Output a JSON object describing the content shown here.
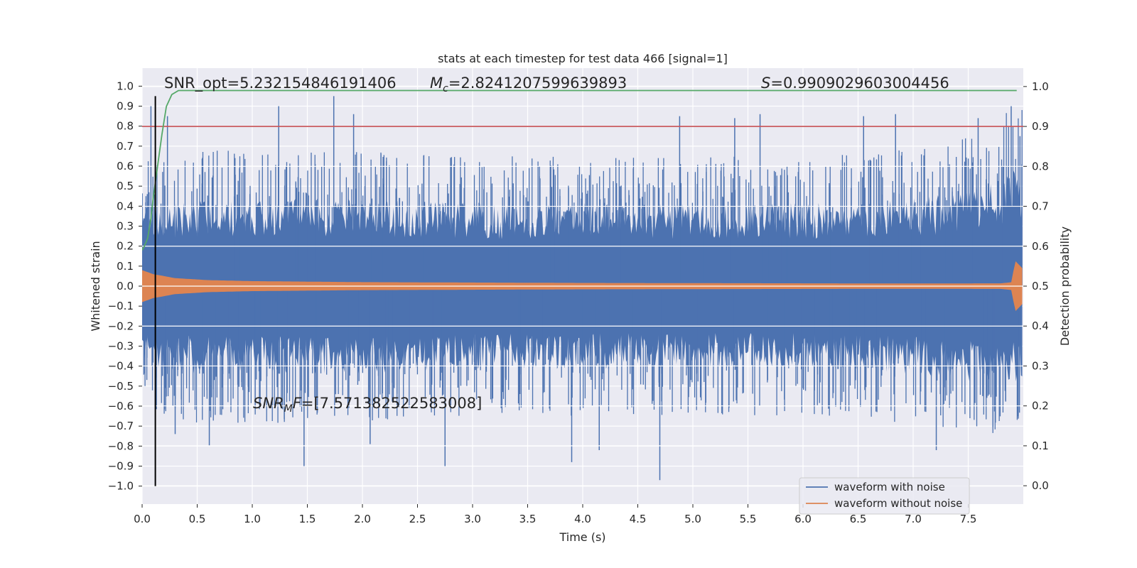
{
  "chart_data": {
    "type": "line",
    "title": "stats at each timestep for test data 466 [signal=1]",
    "xlabel": "Time (s)",
    "ylabel": "Whitened strain",
    "y2label": "Detection probability",
    "xlim": [
      0.0,
      8.0
    ],
    "ylim": [
      -1.09,
      1.09
    ],
    "y2lim": [
      -0.046,
      1.046
    ],
    "xticks": [
      "0.0",
      "0.5",
      "1.0",
      "1.5",
      "2.0",
      "2.5",
      "3.0",
      "3.5",
      "4.0",
      "4.5",
      "5.0",
      "5.5",
      "6.0",
      "6.5",
      "7.0",
      "7.5"
    ],
    "yticks": [
      "1.0",
      "0.9",
      "0.8",
      "0.7",
      "0.6",
      "0.5",
      "0.4",
      "0.3",
      "0.2",
      "0.1",
      "0.0",
      "−0.1",
      "−0.2",
      "−0.3",
      "−0.4",
      "−0.5",
      "−0.6",
      "−0.7",
      "−0.8",
      "−0.9",
      "−1.0"
    ],
    "y2ticks": [
      "1.0",
      "0.9",
      "0.8",
      "0.7",
      "0.6",
      "0.5",
      "0.4",
      "0.3",
      "0.2",
      "0.1",
      "0.0"
    ],
    "grid": true,
    "legend_position": "lower-right",
    "series": [
      {
        "name": "waveform with noise",
        "color": "#4c72b0",
        "axis": "left",
        "envelope_t": [
          0.0,
          0.5,
          1.0,
          2.0,
          3.0,
          4.0,
          5.0,
          6.0,
          7.0,
          7.5,
          7.99
        ],
        "envelope_upper": [
          0.5,
          0.55,
          0.55,
          0.55,
          0.52,
          0.52,
          0.52,
          0.52,
          0.55,
          0.6,
          0.75
        ],
        "envelope_lower": [
          -0.5,
          -0.55,
          -0.55,
          -0.55,
          -0.52,
          -0.52,
          -0.52,
          -0.52,
          -0.55,
          -0.6,
          -0.6
        ],
        "peaks": [
          [
            0.08,
            0.9
          ],
          [
            0.23,
            0.85
          ],
          [
            0.3,
            -0.74
          ],
          [
            0.61,
            -0.8
          ],
          [
            1.24,
            0.9
          ],
          [
            1.47,
            -0.9
          ],
          [
            1.74,
            0.95
          ],
          [
            1.92,
            0.86
          ],
          [
            2.07,
            -0.79
          ],
          [
            2.75,
            -0.9
          ],
          [
            3.9,
            -0.88
          ],
          [
            4.15,
            -0.82
          ],
          [
            4.7,
            -0.97
          ],
          [
            4.88,
            0.85
          ],
          [
            5.38,
            0.84
          ],
          [
            5.61,
            0.86
          ],
          [
            6.55,
            0.85
          ],
          [
            6.84,
            0.86
          ],
          [
            7.21,
            -0.82
          ],
          [
            7.59,
            0.84
          ],
          [
            7.89,
            0.9
          ],
          [
            7.97,
            0.75
          ]
        ]
      },
      {
        "name": "waveform without noise",
        "color": "#dd8452",
        "axis": "left",
        "t": [
          0.0,
          0.1,
          0.3,
          0.6,
          1.0,
          2.0,
          3.0,
          4.0,
          5.0,
          6.0,
          7.0,
          7.8,
          7.9,
          7.92,
          7.99
        ],
        "amp": [
          0.08,
          0.06,
          0.04,
          0.03,
          0.025,
          0.02,
          0.018,
          0.016,
          0.015,
          0.014,
          0.013,
          0.014,
          0.02,
          0.13,
          0.09
        ]
      },
      {
        "name": "",
        "color": "#55a868",
        "axis": "right",
        "t": [
          0.0,
          0.02,
          0.05,
          0.08,
          0.1,
          0.14,
          0.18,
          0.22,
          0.27,
          0.33,
          0.4,
          0.5,
          1.0,
          2.0,
          4.0,
          6.0,
          7.94
        ],
        "values": [
          0.59,
          0.6,
          0.62,
          0.67,
          0.72,
          0.8,
          0.88,
          0.95,
          0.98,
          0.99,
          0.99,
          0.99,
          0.99,
          0.99,
          0.99,
          0.99,
          0.99
        ]
      }
    ],
    "reference_lines": [
      {
        "kind": "hline",
        "axis": "right",
        "value": 0.9,
        "color": "#c44e52"
      },
      {
        "kind": "vline",
        "x": 0.12,
        "y_from": -1.0,
        "y_to": 0.95,
        "color": "#000000"
      }
    ],
    "legend": [
      "waveform with noise",
      "waveform without noise"
    ],
    "annotations": [
      {
        "id": "snr-opt",
        "text": "SNR_opt=5.232154846191406"
      },
      {
        "id": "mc",
        "text_main": "M",
        "text_sub": "c",
        "text_rest": "=2.8241207599639893"
      },
      {
        "id": "s",
        "text_main": "S",
        "text_rest": "=0.9909029603004456"
      },
      {
        "id": "snr-mf",
        "text_main": "SNR",
        "text_sub": "M",
        "text_italic2": "F",
        "text_rest": "=[7.571382522583008]"
      }
    ]
  }
}
